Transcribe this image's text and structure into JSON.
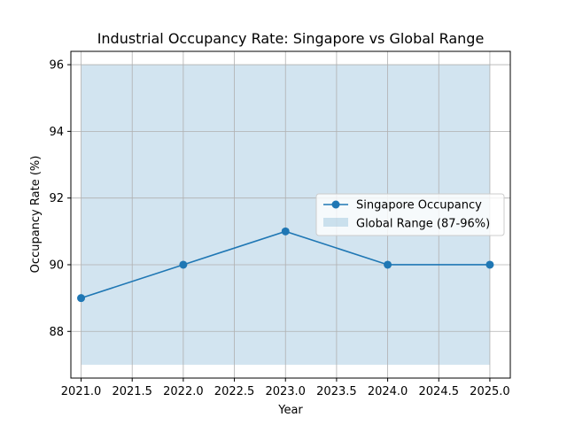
{
  "chart_data": {
    "type": "line",
    "title": "Industrial Occupancy Rate: Singapore vs Global Range",
    "xlabel": "Year",
    "ylabel": "Occupancy Rate (%)",
    "xlim": [
      2020.9,
      2025.2
    ],
    "ylim": [
      86.6,
      96.4
    ],
    "grid": true,
    "legend_position": "center-right",
    "xticks": [
      2021.0,
      2021.5,
      2022.0,
      2022.5,
      2023.0,
      2023.5,
      2024.0,
      2024.5,
      2025.0
    ],
    "xtick_labels": [
      "2021.0",
      "2021.5",
      "2022.0",
      "2022.5",
      "2023.0",
      "2023.5",
      "2024.0",
      "2024.5",
      "2025.0"
    ],
    "yticks": [
      88,
      90,
      92,
      94,
      96
    ],
    "ytick_labels": [
      "88",
      "90",
      "92",
      "94",
      "96"
    ],
    "series": [
      {
        "name": "Singapore Occupancy",
        "kind": "line-marker",
        "color": "#1f77b4",
        "x": [
          2021,
          2022,
          2023,
          2024,
          2025
        ],
        "values": [
          89,
          90,
          91,
          90,
          90
        ]
      }
    ],
    "band": {
      "name": "Global Range (87-96%)",
      "color": "#1f77b4",
      "opacity": 0.2,
      "x": [
        2021,
        2025
      ],
      "low": 87,
      "high": 96
    }
  }
}
